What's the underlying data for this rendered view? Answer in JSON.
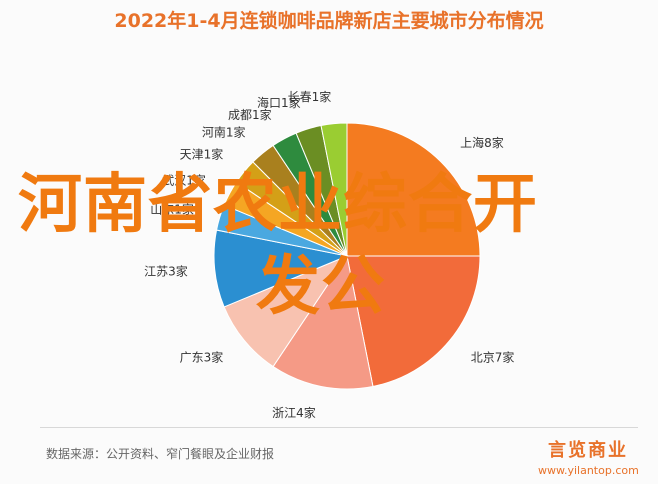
{
  "title": "2022年1-4月连锁咖啡品牌新店主要城市分布情况",
  "overlay": {
    "line1": "河南省农业综合开",
    "line2": "发公"
  },
  "footer": {
    "source": "数据来源：公开资料、窄门餐眼及企业财报",
    "brand_logo": "言览商业",
    "brand_url": "www.yilantop.com"
  },
  "chart_data": {
    "type": "pie",
    "unit": "家",
    "slices": [
      {
        "name": "上海",
        "value": 8,
        "label": "上海8家",
        "color": "#f47b20"
      },
      {
        "name": "北京",
        "value": 7,
        "label": "北京7家",
        "color": "#f26b3a"
      },
      {
        "name": "浙江",
        "value": 4,
        "label": "浙江4家",
        "color": "#f59a86"
      },
      {
        "name": "广东",
        "value": 3,
        "label": "广东3家",
        "color": "#f8c2b0"
      },
      {
        "name": "江苏",
        "value": 3,
        "label": "江苏3家",
        "color": "#2b8fd1"
      },
      {
        "name": "山东",
        "value": 1,
        "label": "山东1家",
        "color": "#4aa8e0"
      },
      {
        "name": "武汉",
        "value": 1,
        "label": "武汉1家",
        "color": "#f5a623"
      },
      {
        "name": "天津",
        "value": 1,
        "label": "天津1家",
        "color": "#d4a017"
      },
      {
        "name": "河南",
        "value": 1,
        "label": "河南1家",
        "color": "#a9801e"
      },
      {
        "name": "成都",
        "value": 1,
        "label": "成都1家",
        "color": "#2e8b3e"
      },
      {
        "name": "海口",
        "value": 1,
        "label": "海口1家",
        "color": "#6b8e23"
      },
      {
        "name": "长春",
        "value": 1,
        "label": "长春1家",
        "color": "#9acd32"
      }
    ]
  }
}
